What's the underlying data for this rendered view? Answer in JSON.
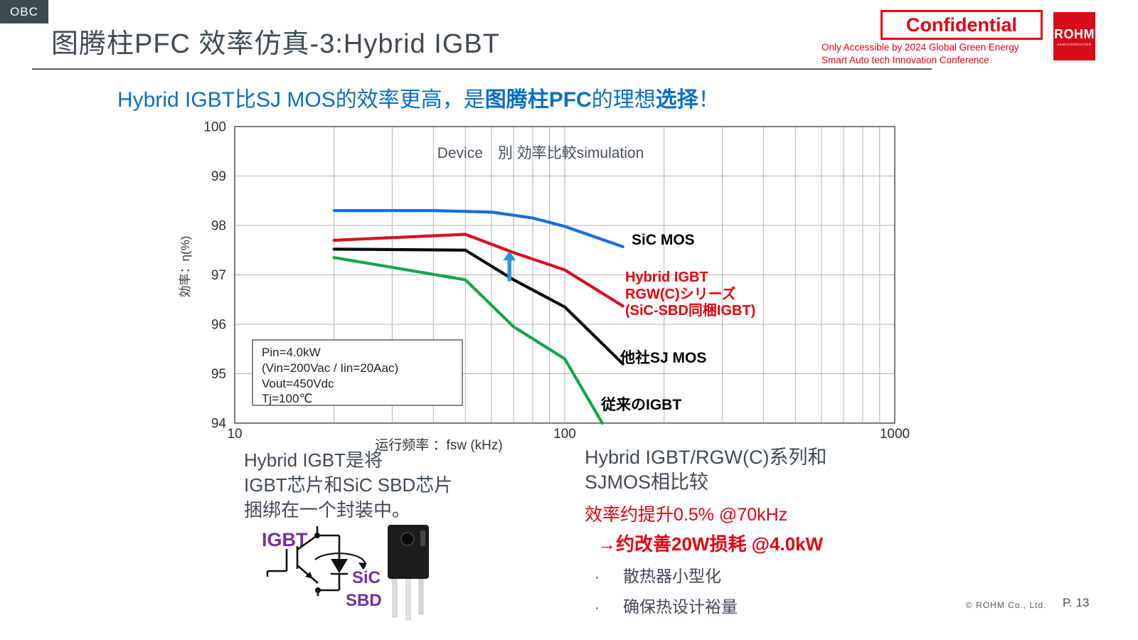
{
  "header": {
    "tab": "OBC",
    "title": "图腾柱PFC  效率仿真-3:Hybrid IGBT",
    "confidential": "Confidential",
    "notice": [
      "Only Accessible by 2024 Global Green Energy",
      "Smart Auto tech Innovation Conference"
    ],
    "logo_text": "ROHM",
    "logo_sub": "SEMICONDUCTOR"
  },
  "subtitle": {
    "pre": "Hybrid IGBT比SJ MOS的效率更高，是",
    "bold1": "图腾柱PFC",
    "mid": "的理想",
    "bold2": "选择",
    "post": "！"
  },
  "chart_data": {
    "type": "line",
    "title": "Device　別 効率比較simulation",
    "xlabel": "运行频率 ：fsw (kHz)",
    "ylabel": "効率：η(%)",
    "xscale": "log",
    "xlim": [
      10,
      1000
    ],
    "ylim": [
      94,
      100
    ],
    "xticks": [
      10,
      100,
      1000
    ],
    "yticks": [
      94,
      95,
      96,
      97,
      98,
      99,
      100
    ],
    "grid": true,
    "legend": "inline labels at right ends of lines",
    "annotation_box": [
      "Pin=4.0kW",
      "(Vin=200Vac / Iin=20Aac)",
      "Vout=450Vdc",
      "Tj=100℃"
    ],
    "series": [
      {
        "name": "SiC MOS",
        "color": "#1a6be0",
        "points": [
          [
            20,
            98.3
          ],
          [
            40,
            98.3
          ],
          [
            60,
            98.27
          ],
          [
            80,
            98.15
          ],
          [
            100,
            97.98
          ],
          [
            150,
            97.57
          ]
        ]
      },
      {
        "name": "Hybrid IGBT RGW(C)シリーズ (SiC-SBD同梱IGBT)",
        "color": "#d8101e",
        "points": [
          [
            20,
            97.7
          ],
          [
            50,
            97.82
          ],
          [
            70,
            97.45
          ],
          [
            100,
            97.1
          ],
          [
            150,
            96.37
          ]
        ]
      },
      {
        "name": "他社SJ MOS",
        "color": "#0a0a0a",
        "points": [
          [
            20,
            97.52
          ],
          [
            50,
            97.5
          ],
          [
            70,
            96.9
          ],
          [
            100,
            96.35
          ],
          [
            150,
            95.2
          ]
        ]
      },
      {
        "name": "従来のIGBT",
        "color": "#12a64b",
        "points": [
          [
            20,
            97.35
          ],
          [
            50,
            96.9
          ],
          [
            70,
            95.95
          ],
          [
            100,
            95.3
          ],
          [
            130,
            94.0
          ]
        ]
      }
    ],
    "labels": {
      "sic": "SiC MOS",
      "hybrid1": "Hybrid IGBT",
      "hybrid2": "RGW(C)シリーズ",
      "hybrid3": "(SiC-SBD同梱IGBT)",
      "sj": "他社SJ MOS",
      "igbt": "従来のIGBT"
    },
    "arrow": {
      "x": 68,
      "y_from": 96.87,
      "y_to": 97.48,
      "color": "#2f97d4"
    }
  },
  "left_note": {
    "lines": [
      "Hybrid IGBT是将",
      "IGBT芯片和SiC SBD芯片",
      "捆绑在一个封装中。"
    ]
  },
  "symbol": {
    "igbt": "IGBT",
    "sic": "SiC",
    "sbd": "SBD"
  },
  "right_note": {
    "line1": "Hybrid IGBT/RGW(C)系列和",
    "line2": "SJMOS相比较",
    "line3": "效率约提升0.5%  @70kHz",
    "line4": "→约改善20W损耗  @4.0kW",
    "bullets": [
      "散热器小型化",
      "确保热设计裕量"
    ]
  },
  "footer": {
    "copyright": "©  ROHM Co., Ltd.",
    "page": "P. 13"
  },
  "colors": {
    "accent_red": "#e60012",
    "rohm_red": "#d80c18",
    "subtitle_blue": "#0a6fc0",
    "title_gray": "#3e4a52",
    "purple_label": "#7030a0",
    "grid_gray": "#b3b3b3"
  }
}
